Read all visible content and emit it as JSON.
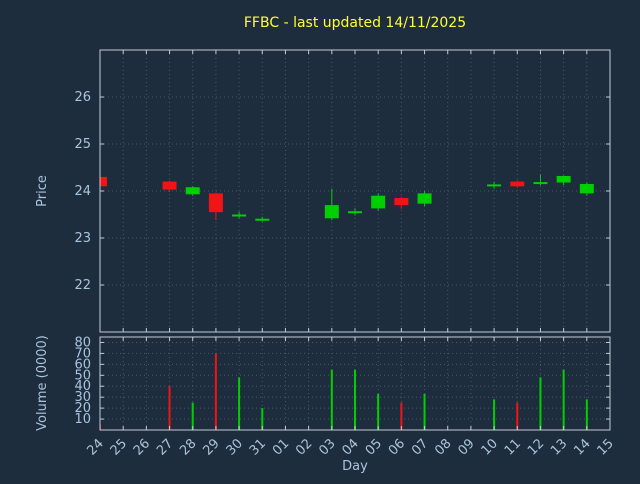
{
  "title": "FFBC - last updated 14/11/2025",
  "colors": {
    "background": "#1e2d3d",
    "title": "#ffff33",
    "axis_text": "#a9c4dd",
    "border": "#c3ccd6",
    "grid": "#46586c",
    "up": "#00d000",
    "down": "#f01414"
  },
  "chart_data": {
    "type": "candlestick+volume",
    "title": "FFBC - last updated 14/11/2025",
    "xlabel": "Day",
    "x_categories": [
      "24",
      "25",
      "26",
      "27",
      "28",
      "29",
      "30",
      "31",
      "01",
      "02",
      "03",
      "04",
      "05",
      "06",
      "07",
      "08",
      "09",
      "10",
      "11",
      "12",
      "13",
      "14",
      "15"
    ],
    "grid": "dotted",
    "price": {
      "ylabel": "Price",
      "ylim": [
        21.0,
        27.0
      ],
      "yticks": [
        22,
        23,
        24,
        25,
        26
      ]
    },
    "volume": {
      "ylabel": "Volume (0000)",
      "ylim": [
        0,
        85
      ],
      "yticks": [
        10,
        20,
        30,
        40,
        50,
        60,
        70,
        80
      ]
    },
    "candles": [
      {
        "day": "24",
        "open": 24.3,
        "high": 24.32,
        "low": 24.05,
        "close": 24.1,
        "dir": "down",
        "volume": 5
      },
      {
        "day": "27",
        "open": 24.2,
        "high": 24.22,
        "low": 23.98,
        "close": 24.03,
        "dir": "down",
        "volume": 40
      },
      {
        "day": "28",
        "open": 23.93,
        "high": 24.1,
        "low": 23.9,
        "close": 24.08,
        "dir": "up",
        "volume": 25
      },
      {
        "day": "29",
        "open": 23.95,
        "high": 23.97,
        "low": 23.38,
        "close": 23.55,
        "dir": "down",
        "volume": 70
      },
      {
        "day": "30",
        "open": 23.49,
        "high": 23.56,
        "low": 23.42,
        "close": 23.5,
        "dir": "up",
        "volume": 48
      },
      {
        "day": "31",
        "open": 23.4,
        "high": 23.45,
        "low": 23.35,
        "close": 23.41,
        "dir": "up",
        "volume": 20
      },
      {
        "day": "03",
        "open": 23.42,
        "high": 24.05,
        "low": 23.38,
        "close": 23.7,
        "dir": "up",
        "volume": 55
      },
      {
        "day": "04",
        "open": 23.55,
        "high": 23.63,
        "low": 23.48,
        "close": 23.57,
        "dir": "up",
        "volume": 55
      },
      {
        "day": "05",
        "open": 23.63,
        "high": 23.95,
        "low": 23.58,
        "close": 23.9,
        "dir": "up",
        "volume": 33
      },
      {
        "day": "06",
        "open": 23.85,
        "high": 23.88,
        "low": 23.62,
        "close": 23.7,
        "dir": "down",
        "volume": 25
      },
      {
        "day": "07",
        "open": 23.73,
        "high": 24.0,
        "low": 23.68,
        "close": 23.95,
        "dir": "up",
        "volume": 33
      },
      {
        "day": "10",
        "open": 24.12,
        "high": 24.2,
        "low": 24.05,
        "close": 24.14,
        "dir": "up",
        "volume": 28
      },
      {
        "day": "11",
        "open": 24.2,
        "high": 24.23,
        "low": 24.07,
        "close": 24.1,
        "dir": "down",
        "volume": 25
      },
      {
        "day": "12",
        "open": 24.17,
        "high": 24.35,
        "low": 24.12,
        "close": 24.19,
        "dir": "up",
        "volume": 48
      },
      {
        "day": "13",
        "open": 24.18,
        "high": 24.33,
        "low": 24.12,
        "close": 24.32,
        "dir": "up",
        "volume": 55
      },
      {
        "day": "14",
        "open": 23.95,
        "high": 24.18,
        "low": 23.9,
        "close": 24.15,
        "dir": "up",
        "volume": 28
      }
    ]
  }
}
